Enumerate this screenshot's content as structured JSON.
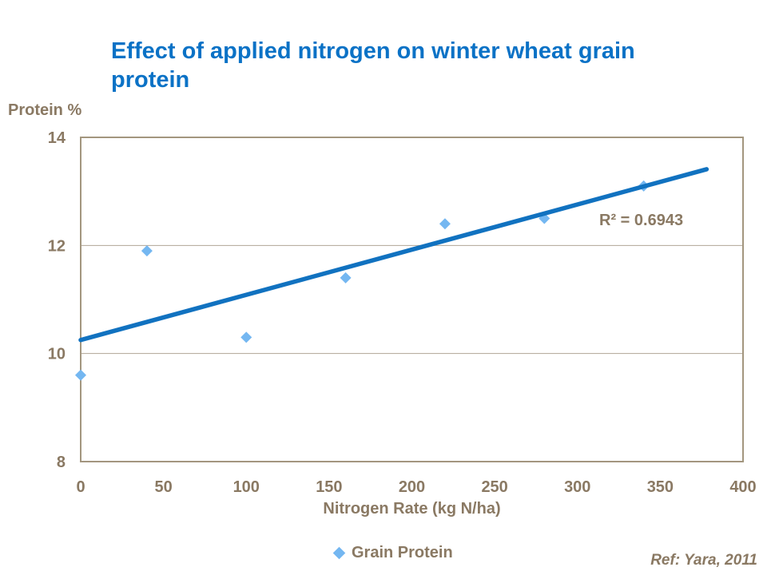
{
  "slide": {
    "title_lines": [
      "Effect of applied nitrogen on winter wheat grain",
      "protein"
    ],
    "reference": "Ref: Yara, 2011"
  },
  "colors": {
    "background": "#ffffff",
    "title_blue": "#0b72c6",
    "trendline_blue": "#1172c0",
    "marker_blue": "#74b7f1",
    "axis_brown": "#8a7963",
    "border_brown": "#a3967f",
    "gridline_brown": "#b0a496"
  },
  "chart_data": {
    "type": "scatter",
    "title": "Effect of applied nitrogen on winter wheat grain protein",
    "xlabel": "Nitrogen Rate (kg N/ha)",
    "ylabel": "Protein %",
    "xlim": [
      0,
      400
    ],
    "ylim": [
      8,
      14
    ],
    "x_ticks": [
      0,
      50,
      100,
      150,
      200,
      250,
      300,
      350,
      400
    ],
    "y_ticks": [
      8,
      10,
      12,
      14
    ],
    "gridlines_y": [
      10,
      12
    ],
    "grid": "horizontal only",
    "legend": {
      "label": "Grain Protein",
      "position": "bottom-center",
      "marker": "diamond"
    },
    "series": [
      {
        "name": "Grain Protein",
        "marker": "diamond",
        "points": [
          {
            "x": 0,
            "y": 9.6
          },
          {
            "x": 40,
            "y": 11.9
          },
          {
            "x": 100,
            "y": 10.3
          },
          {
            "x": 160,
            "y": 11.4
          },
          {
            "x": 220,
            "y": 12.4
          },
          {
            "x": 280,
            "y": 12.5
          },
          {
            "x": 340,
            "y": 13.1
          }
        ]
      }
    ],
    "trendline": {
      "type": "linear",
      "x_start": 0,
      "y_start": 10.25,
      "x_end": 378,
      "y_end": 13.41,
      "r_squared": 0.6943,
      "r_squared_label": "R² = 0.6943"
    }
  }
}
